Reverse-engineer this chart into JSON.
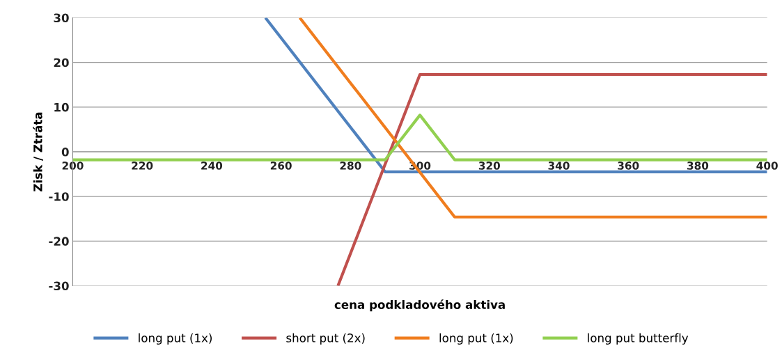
{
  "chart_data": {
    "type": "line",
    "xlabel": "cena podkladového aktiva",
    "ylabel": "Zisk / Ztráta",
    "xlim": [
      200,
      400
    ],
    "xticks": [
      200,
      220,
      240,
      260,
      280,
      300,
      320,
      340,
      360,
      380,
      400
    ],
    "ylim": [
      -30,
      30
    ],
    "yticks": [
      -30,
      -20,
      -10,
      0,
      10,
      20,
      30
    ],
    "grid": "y",
    "legend": "bottom",
    "marker": "none",
    "line_style": "solid",
    "series": [
      {
        "name": "long put (1x)",
        "color": "#4f81bd",
        "x": [
          255.5,
          290,
          400
        ],
        "values": [
          30,
          -4.5,
          -4.5
        ]
      },
      {
        "name": "short put (2x)",
        "color": "#c0504d",
        "x": [
          276.4,
          300,
          400
        ],
        "values": [
          -30,
          17.3,
          17.3
        ]
      },
      {
        "name": "long put (1x)",
        "color": "#f07d1e",
        "x": [
          265.4,
          310,
          400
        ],
        "values": [
          30,
          -14.6,
          -14.6
        ]
      },
      {
        "name": "long put butterfly",
        "color": "#92d050",
        "x": [
          200,
          290,
          300,
          310,
          400
        ],
        "values": [
          -1.8,
          -1.8,
          8.2,
          -1.8,
          -1.8
        ]
      }
    ]
  }
}
